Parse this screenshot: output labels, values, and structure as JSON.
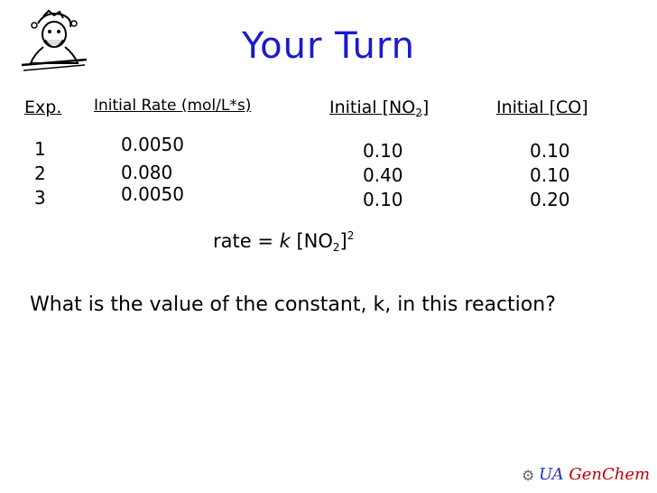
{
  "slide": {
    "title": "Your Turn",
    "headers": {
      "exp": "Exp.",
      "rate": "Initial Rate (mol/L*s)",
      "no2_prefix": "Initial [NO",
      "no2_sub": "2",
      "no2_suffix": "]",
      "co": "Initial [CO]"
    },
    "rows": [
      {
        "exp": "1",
        "rate": "0.0050",
        "no2": "0.10",
        "co": "0.10"
      },
      {
        "exp": "2",
        "rate": "0.080",
        "no2": "0.40",
        "co": "0.10"
      },
      {
        "exp": "3",
        "rate": "0.0050",
        "no2": "0.10",
        "co": "0.20"
      }
    ],
    "equation": {
      "lhs": "rate = ",
      "k": "k",
      "bracket_open": " [NO",
      "sub": "2",
      "bracket_close": "]",
      "power": "2"
    },
    "question": "What is the value of the constant, k, in this reaction?",
    "footer": {
      "ua": "UA",
      "genchem": "GenChem"
    }
  }
}
